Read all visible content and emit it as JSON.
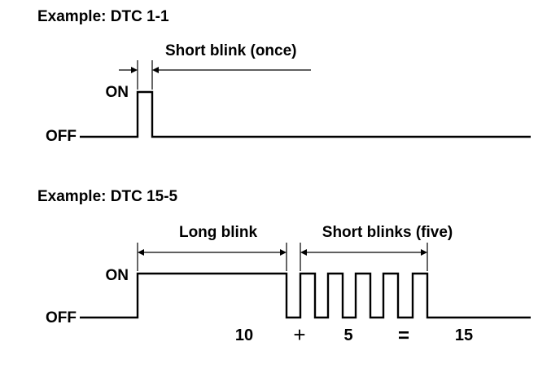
{
  "example1": {
    "title": "Example: DTC 1-1",
    "on_label": "ON",
    "off_label": "OFF",
    "dimension_label": "Short blink (once)",
    "waveform": {
      "pulses": [
        {
          "type": "short",
          "count": 1
        }
      ]
    }
  },
  "example2": {
    "title": "Example: DTC 15-5",
    "on_label": "ON",
    "off_label": "OFF",
    "long_label": "Long blink",
    "short_label": "Short blinks (five)",
    "waveform": {
      "pulses": [
        {
          "type": "long",
          "count": 1
        },
        {
          "type": "short",
          "count": 5
        }
      ]
    },
    "equation": {
      "long_value": "10",
      "plus": "+",
      "short_value": "5",
      "equals": "=",
      "result": "15"
    }
  }
}
